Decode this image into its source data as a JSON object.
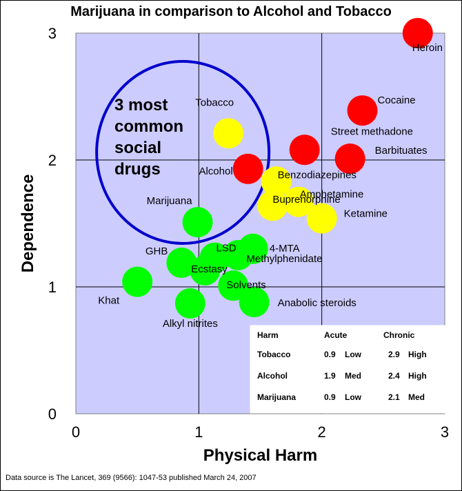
{
  "chart_data": {
    "type": "scatter",
    "title": "Marijuana in comparison to Alcohol and Tobacco",
    "xlabel": "Physical Harm",
    "ylabel": "Dependence",
    "xlim": [
      0,
      3
    ],
    "ylim": [
      0,
      3
    ],
    "xticks": [
      "0",
      "1",
      "2",
      "3"
    ],
    "yticks": [
      "0",
      "1",
      "2",
      "3"
    ],
    "grid": true,
    "background_color": "#ccccff",
    "colors": {
      "high": "#ff0000",
      "mid": "#ffff00",
      "low": "#00ff00"
    },
    "points": [
      {
        "label": "Heroin",
        "x": 2.78,
        "y": 3.0,
        "color": "high"
      },
      {
        "label": "Cocaine",
        "x": 2.33,
        "y": 2.39,
        "color": "high"
      },
      {
        "label": "Street methadone",
        "x": 1.86,
        "y": 2.08,
        "color": "high"
      },
      {
        "label": "Barbituates",
        "x": 2.23,
        "y": 2.01,
        "color": "high"
      },
      {
        "label": "Alcohol",
        "x": 1.4,
        "y": 1.93,
        "color": "high"
      },
      {
        "label": "Tobacco",
        "x": 1.24,
        "y": 2.21,
        "color": "mid"
      },
      {
        "label": "Benzodiazepines",
        "x": 1.63,
        "y": 1.83,
        "color": "mid"
      },
      {
        "label": "Amphetamine",
        "x": 1.81,
        "y": 1.67,
        "color": "mid"
      },
      {
        "label": "Buprenorphine",
        "x": 1.6,
        "y": 1.64,
        "color": "mid"
      },
      {
        "label": "Ketamine",
        "x": 2.0,
        "y": 1.54,
        "color": "mid"
      },
      {
        "label": "Marijuana",
        "x": 0.99,
        "y": 1.51,
        "color": "low"
      },
      {
        "label": "4-MTA",
        "x": 1.44,
        "y": 1.3,
        "color": "low"
      },
      {
        "label": "LSD",
        "x": 1.13,
        "y": 1.23,
        "color": "low"
      },
      {
        "label": "Methylphenidate",
        "x": 1.32,
        "y": 1.25,
        "color": "low"
      },
      {
        "label": "GHB",
        "x": 0.86,
        "y": 1.19,
        "color": "low"
      },
      {
        "label": "Ecstasy",
        "x": 1.05,
        "y": 1.13,
        "color": "low"
      },
      {
        "label": "Khat",
        "x": 0.5,
        "y": 1.04,
        "color": "low"
      },
      {
        "label": "Solvents",
        "x": 1.28,
        "y": 1.01,
        "color": "low"
      },
      {
        "label": "Alkyl nitrites",
        "x": 0.93,
        "y": 0.87,
        "color": "low"
      },
      {
        "label": "Anabolic steroids",
        "x": 1.45,
        "y": 0.88,
        "color": "low"
      }
    ],
    "annotation": {
      "text_lines": [
        "3 most",
        "common",
        "social",
        "drugs"
      ],
      "ellipse_color": "#0000cc"
    },
    "table": {
      "headers": [
        "Harm",
        "Acute",
        "Chronic"
      ],
      "rows": [
        [
          "Tobacco",
          "0.9",
          "Low",
          "2.9",
          "High"
        ],
        [
          "Alcohol",
          "1.9",
          "Med",
          "2.4",
          "High"
        ],
        [
          "Marijuana",
          "0.9",
          "Low",
          "2.1",
          "Med"
        ]
      ]
    }
  },
  "source": "Data source is The Lancet, 369 (9566): 1047-53 published March 24, 2007"
}
